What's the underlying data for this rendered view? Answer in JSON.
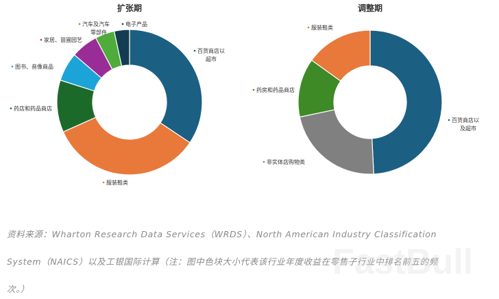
{
  "chart_data": [
    {
      "type": "pie",
      "variant": "donut",
      "title": "扩张期",
      "unit": "percent of top-5 rankings (estimated from slice size)",
      "slices": [
        {
          "label": "百货商店以\n超市",
          "value": 34.4,
          "color": "#1b5f82"
        },
        {
          "label": "服装鞋类",
          "value": 33.9,
          "color": "#e8793a"
        },
        {
          "label": "药店和药品商店",
          "value": 11.6,
          "color": "#1c6a2a"
        },
        {
          "label": "图书、音像商品",
          "value": 6.4,
          "color": "#1ca4d8"
        },
        {
          "label": "家居、苗圃园艺",
          "value": 6.0,
          "color": "#9a2c98"
        },
        {
          "label": "汽车及汽车\n零部件",
          "value": 4.3,
          "color": "#4fac3a"
        },
        {
          "label": "电子产品",
          "value": 3.4,
          "color": "#133c52"
        }
      ]
    },
    {
      "type": "pie",
      "variant": "donut",
      "title": "调整期",
      "unit": "percent of top-5 rankings (estimated from slice size)",
      "slices": [
        {
          "label": "百货商店以\n及超市",
          "value": 49.2,
          "color": "#1b5f82"
        },
        {
          "label": "非实体店购物类",
          "value": 22.5,
          "color": "#808080"
        },
        {
          "label": "药房和药品商店",
          "value": 13.2,
          "color": "#3d8a27"
        },
        {
          "label": "服装鞋类",
          "value": 15.1,
          "color": "#e8793a"
        }
      ]
    }
  ],
  "caption": {
    "line1": "资料来源：Wharton Research Data Services（WRDS）、North American Industry Classification",
    "line2": "System（NAICS）以及工银国际计算（注：图中色块大小代表该行业年度收益在零售子行业中排名前五的频",
    "line3": "次。）"
  },
  "watermark": "FastBull"
}
